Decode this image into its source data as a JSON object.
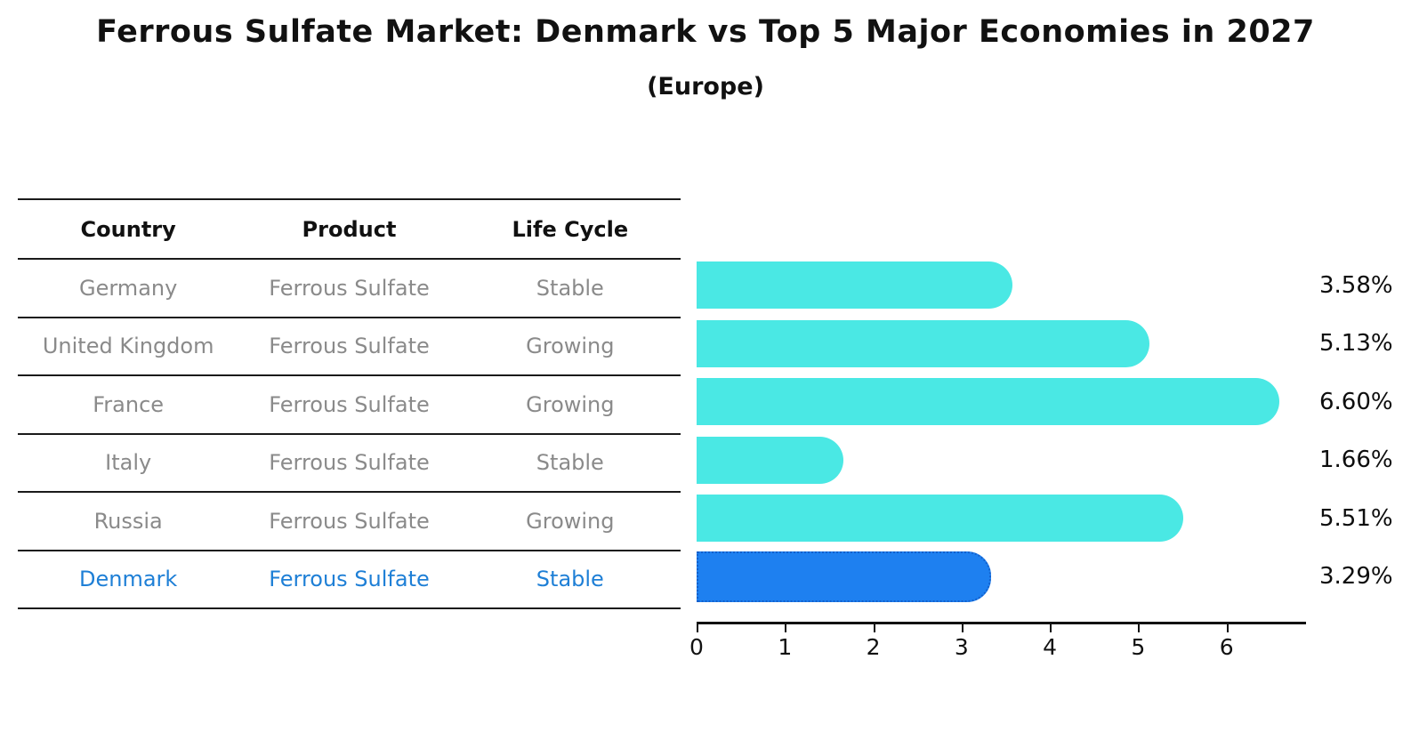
{
  "title": "Ferrous Sulfate Market: Denmark vs Top 5 Major Economies in 2027",
  "subtitle": "(Europe)",
  "table": {
    "headers": {
      "country": "Country",
      "product": "Product",
      "life_cycle": "Life Cycle"
    },
    "rows": [
      {
        "country": "Germany",
        "product": "Ferrous Sulfate",
        "life_cycle": "Stable"
      },
      {
        "country": "United Kingdom",
        "product": "Ferrous Sulfate",
        "life_cycle": "Growing"
      },
      {
        "country": "France",
        "product": "Ferrous Sulfate",
        "life_cycle": "Growing"
      },
      {
        "country": "Italy",
        "product": "Ferrous Sulfate",
        "life_cycle": "Stable"
      },
      {
        "country": "Russia",
        "product": "Ferrous Sulfate",
        "life_cycle": "Growing"
      },
      {
        "country": "Denmark",
        "product": "Ferrous Sulfate",
        "life_cycle": "Stable"
      }
    ]
  },
  "chart_data": {
    "type": "bar",
    "orientation": "horizontal",
    "title": "Ferrous Sulfate Market: Denmark vs Top 5 Major Economies in 2027 (Europe)",
    "categories": [
      "Germany",
      "United Kingdom",
      "France",
      "Italy",
      "Russia",
      "Denmark"
    ],
    "values": [
      3.58,
      5.13,
      6.6,
      1.66,
      5.51,
      3.29
    ],
    "value_labels": [
      "3.58%",
      "5.13%",
      "6.60%",
      "1.66%",
      "5.51%",
      "3.29%"
    ],
    "xlabel": "",
    "ylabel": "",
    "xlim": [
      0,
      6.9
    ],
    "xticks": [
      "0",
      "1",
      "2",
      "3",
      "4",
      "5",
      "6"
    ],
    "grid": false,
    "legend": false,
    "highlight_category": "Denmark",
    "bar_color": "#4ae8e4",
    "highlight_bar_color": "#1e80f0",
    "highlight_text_color": "#1e7fd6"
  }
}
